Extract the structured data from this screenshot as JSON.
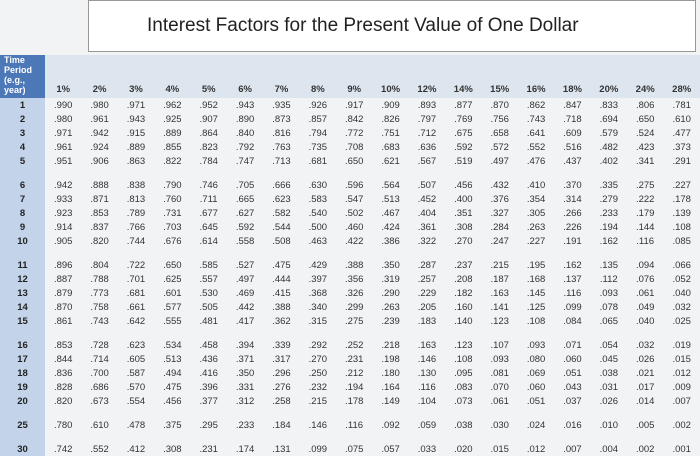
{
  "title": "Interest Factors for the Present Value of One Dollar",
  "table": {
    "header": [
      "Time Period (e.g., year)",
      "1%",
      "2%",
      "3%",
      "4%",
      "5%",
      "6%",
      "7%",
      "8%",
      "9%",
      "10%",
      "12%",
      "14%",
      "15%",
      "16%",
      "18%",
      "20%",
      "24%",
      "28%"
    ],
    "rows": [
      [
        "1",
        ".990",
        ".980",
        ".971",
        ".962",
        ".952",
        ".943",
        ".935",
        ".926",
        ".917",
        ".909",
        ".893",
        ".877",
        ".870",
        ".862",
        ".847",
        ".833",
        ".806",
        ".781"
      ],
      [
        "2",
        ".980",
        ".961",
        ".943",
        ".925",
        ".907",
        ".890",
        ".873",
        ".857",
        ".842",
        ".826",
        ".797",
        ".769",
        ".756",
        ".743",
        ".718",
        ".694",
        ".650",
        ".610"
      ],
      [
        "3",
        ".971",
        ".942",
        ".915",
        ".889",
        ".864",
        ".840",
        ".816",
        ".794",
        ".772",
        ".751",
        ".712",
        ".675",
        ".658",
        ".641",
        ".609",
        ".579",
        ".524",
        ".477"
      ],
      [
        "4",
        ".961",
        ".924",
        ".889",
        ".855",
        ".823",
        ".792",
        ".763",
        ".735",
        ".708",
        ".683",
        ".636",
        ".592",
        ".572",
        ".552",
        ".516",
        ".482",
        ".423",
        ".373"
      ],
      [
        "5",
        ".951",
        ".906",
        ".863",
        ".822",
        ".784",
        ".747",
        ".713",
        ".681",
        ".650",
        ".621",
        ".567",
        ".519",
        ".497",
        ".476",
        ".437",
        ".402",
        ".341",
        ".291"
      ],
      [
        "6",
        ".942",
        ".888",
        ".838",
        ".790",
        ".746",
        ".705",
        ".666",
        ".630",
        ".596",
        ".564",
        ".507",
        ".456",
        ".432",
        ".410",
        ".370",
        ".335",
        ".275",
        ".227"
      ],
      [
        "7",
        ".933",
        ".871",
        ".813",
        ".760",
        ".711",
        ".665",
        ".623",
        ".583",
        ".547",
        ".513",
        ".452",
        ".400",
        ".376",
        ".354",
        ".314",
        ".279",
        ".222",
        ".178"
      ],
      [
        "8",
        ".923",
        ".853",
        ".789",
        ".731",
        ".677",
        ".627",
        ".582",
        ".540",
        ".502",
        ".467",
        ".404",
        ".351",
        ".327",
        ".305",
        ".266",
        ".233",
        ".179",
        ".139"
      ],
      [
        "9",
        ".914",
        ".837",
        ".766",
        ".703",
        ".645",
        ".592",
        ".544",
        ".500",
        ".460",
        ".424",
        ".361",
        ".308",
        ".284",
        ".263",
        ".226",
        ".194",
        ".144",
        ".108"
      ],
      [
        "10",
        ".905",
        ".820",
        ".744",
        ".676",
        ".614",
        ".558",
        ".508",
        ".463",
        ".422",
        ".386",
        ".322",
        ".270",
        ".247",
        ".227",
        ".191",
        ".162",
        ".116",
        ".085"
      ],
      [
        "11",
        ".896",
        ".804",
        ".722",
        ".650",
        ".585",
        ".527",
        ".475",
        ".429",
        ".388",
        ".350",
        ".287",
        ".237",
        ".215",
        ".195",
        ".162",
        ".135",
        ".094",
        ".066"
      ],
      [
        "12",
        ".887",
        ".788",
        ".701",
        ".625",
        ".557",
        ".497",
        ".444",
        ".397",
        ".356",
        ".319",
        ".257",
        ".208",
        ".187",
        ".168",
        ".137",
        ".112",
        ".076",
        ".052"
      ],
      [
        "13",
        ".879",
        ".773",
        ".681",
        ".601",
        ".530",
        ".469",
        ".415",
        ".368",
        ".326",
        ".290",
        ".229",
        ".182",
        ".163",
        ".145",
        ".116",
        ".093",
        ".061",
        ".040"
      ],
      [
        "14",
        ".870",
        ".758",
        ".661",
        ".577",
        ".505",
        ".442",
        ".388",
        ".340",
        ".299",
        ".263",
        ".205",
        ".160",
        ".141",
        ".125",
        ".099",
        ".078",
        ".049",
        ".032"
      ],
      [
        "15",
        ".861",
        ".743",
        ".642",
        ".555",
        ".481",
        ".417",
        ".362",
        ".315",
        ".275",
        ".239",
        ".183",
        ".140",
        ".123",
        ".108",
        ".084",
        ".065",
        ".040",
        ".025"
      ],
      [
        "16",
        ".853",
        ".728",
        ".623",
        ".534",
        ".458",
        ".394",
        ".339",
        ".292",
        ".252",
        ".218",
        ".163",
        ".123",
        ".107",
        ".093",
        ".071",
        ".054",
        ".032",
        ".019"
      ],
      [
        "17",
        ".844",
        ".714",
        ".605",
        ".513",
        ".436",
        ".371",
        ".317",
        ".270",
        ".231",
        ".198",
        ".146",
        ".108",
        ".093",
        ".080",
        ".060",
        ".045",
        ".026",
        ".015"
      ],
      [
        "18",
        ".836",
        ".700",
        ".587",
        ".494",
        ".416",
        ".350",
        ".296",
        ".250",
        ".212",
        ".180",
        ".130",
        ".095",
        ".081",
        ".069",
        ".051",
        ".038",
        ".021",
        ".012"
      ],
      [
        "19",
        ".828",
        ".686",
        ".570",
        ".475",
        ".396",
        ".331",
        ".276",
        ".232",
        ".194",
        ".164",
        ".116",
        ".083",
        ".070",
        ".060",
        ".043",
        ".031",
        ".017",
        ".009"
      ],
      [
        "20",
        ".820",
        ".673",
        ".554",
        ".456",
        ".377",
        ".312",
        ".258",
        ".215",
        ".178",
        ".149",
        ".104",
        ".073",
        ".061",
        ".051",
        ".037",
        ".026",
        ".014",
        ".007"
      ],
      [
        "25",
        ".780",
        ".610",
        ".478",
        ".375",
        ".295",
        ".233",
        ".184",
        ".146",
        ".116",
        ".092",
        ".059",
        ".038",
        ".030",
        ".024",
        ".016",
        ".010",
        ".005",
        ".002"
      ],
      [
        "30",
        ".742",
        ".552",
        ".412",
        ".308",
        ".231",
        ".174",
        ".131",
        ".099",
        ".075",
        ".057",
        ".033",
        ".020",
        ".015",
        ".012",
        ".007",
        ".004",
        ".002",
        ".001"
      ]
    ]
  }
}
